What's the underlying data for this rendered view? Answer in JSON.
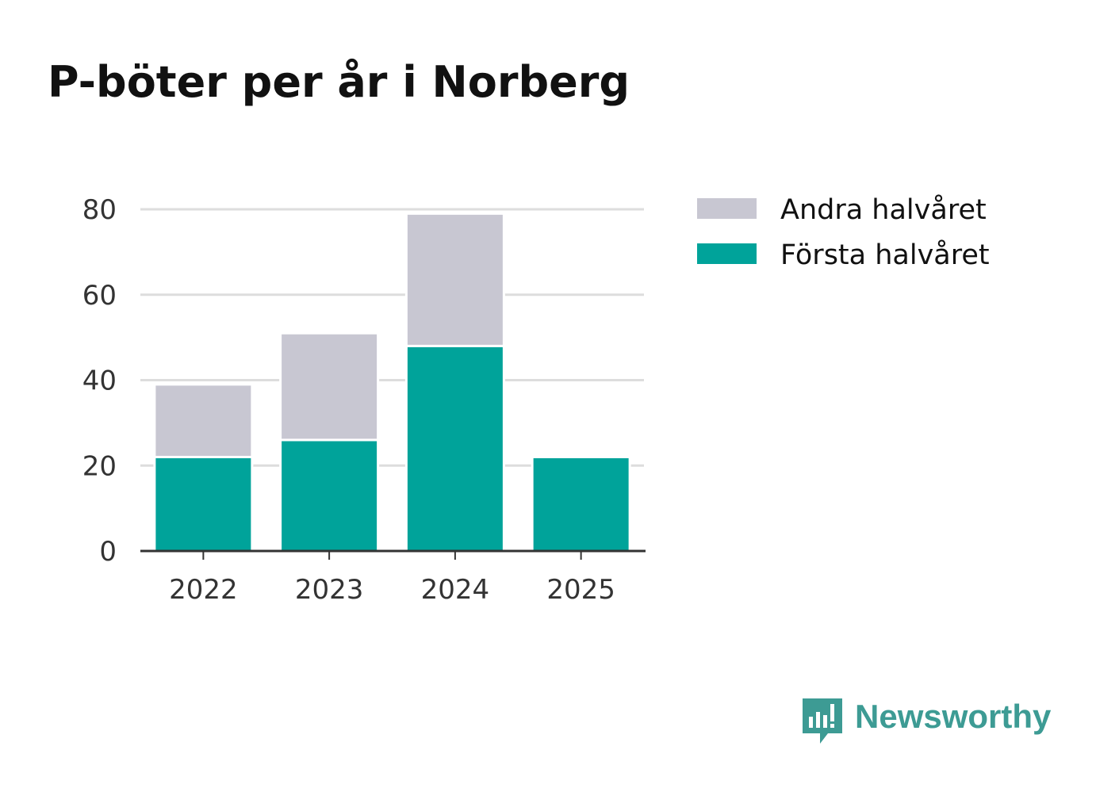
{
  "chart_data": {
    "type": "bar",
    "stacked": true,
    "title": "P-böter per år i Norberg",
    "categories": [
      "2022",
      "2023",
      "2024",
      "2025"
    ],
    "series": [
      {
        "name": "Första halvåret",
        "color": "#00a39a",
        "values": [
          22,
          26,
          48,
          22
        ]
      },
      {
        "name": "Andra halvåret",
        "color": "#c8c7d2",
        "values": [
          17,
          25,
          31,
          0
        ]
      }
    ],
    "yticks": [
      0,
      20,
      40,
      60,
      80
    ],
    "ylim": [
      0,
      80
    ],
    "xlabel": "",
    "ylabel": "",
    "grid": true,
    "legend_position": "top-right"
  },
  "legend": [
    {
      "label": "Andra halvåret",
      "color": "#c8c7d2"
    },
    {
      "label": "Första halvåret",
      "color": "#00a39a"
    }
  ],
  "brand": {
    "name": "Newsworthy",
    "color": "#3d9b94",
    "icon": "newsworthy-logo-icon"
  }
}
